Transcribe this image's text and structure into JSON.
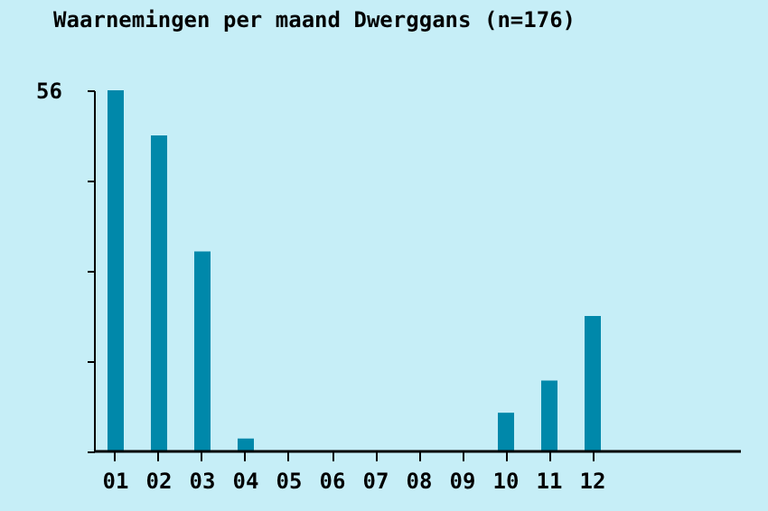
{
  "chart_data": {
    "type": "bar",
    "title": "Waarnemingen per maand Dwerggans (n=176)",
    "categories": [
      "01",
      "02",
      "03",
      "04",
      "05",
      "06",
      "07",
      "08",
      "09",
      "10",
      "11",
      "12"
    ],
    "values": [
      56,
      49,
      31,
      2,
      0,
      0,
      0,
      0,
      0,
      6,
      11,
      21
    ],
    "color": "#0088aa",
    "ylim": [
      0,
      56
    ],
    "yticks": [
      {
        "value": 0,
        "label": null
      },
      {
        "value": 14,
        "label": null
      },
      {
        "value": 28,
        "label": null
      },
      {
        "value": 42,
        "label": null
      },
      56
    ],
    "grid": false
  }
}
